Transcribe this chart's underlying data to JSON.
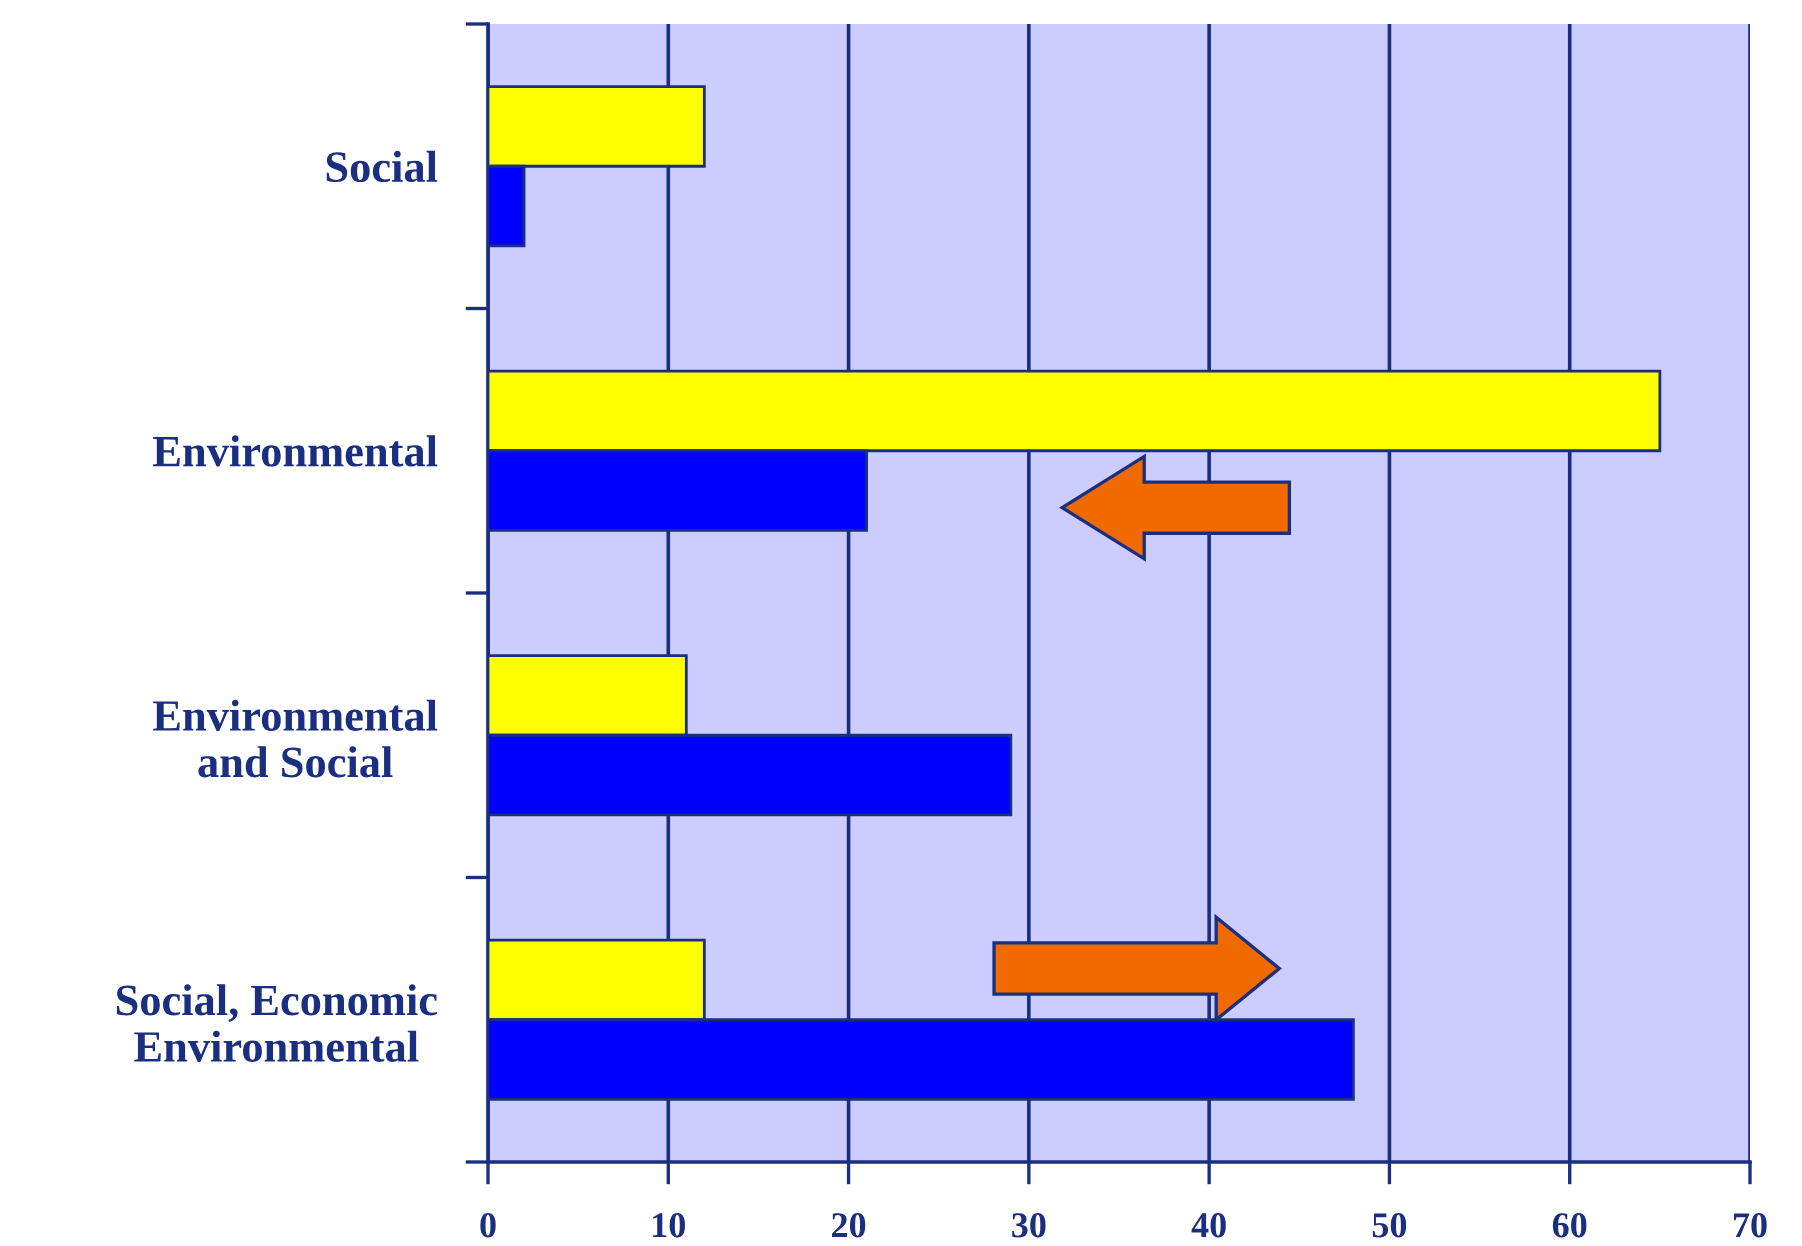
{
  "chart_data": {
    "type": "bar",
    "orientation": "horizontal",
    "categories": [
      "Social",
      "Environmental",
      "Environmental\nand Social",
      "Social, Economic\nEnvironmental"
    ],
    "series": [
      {
        "color": "#ffff00",
        "values": [
          12,
          65,
          11,
          12
        ]
      },
      {
        "color": "#0000ff",
        "values": [
          2,
          21,
          29,
          48
        ]
      }
    ],
    "xlim": [
      0,
      70
    ],
    "xticks": [
      0,
      10,
      20,
      30,
      40,
      50,
      60,
      70
    ],
    "grid": "x",
    "legend": false
  }
}
